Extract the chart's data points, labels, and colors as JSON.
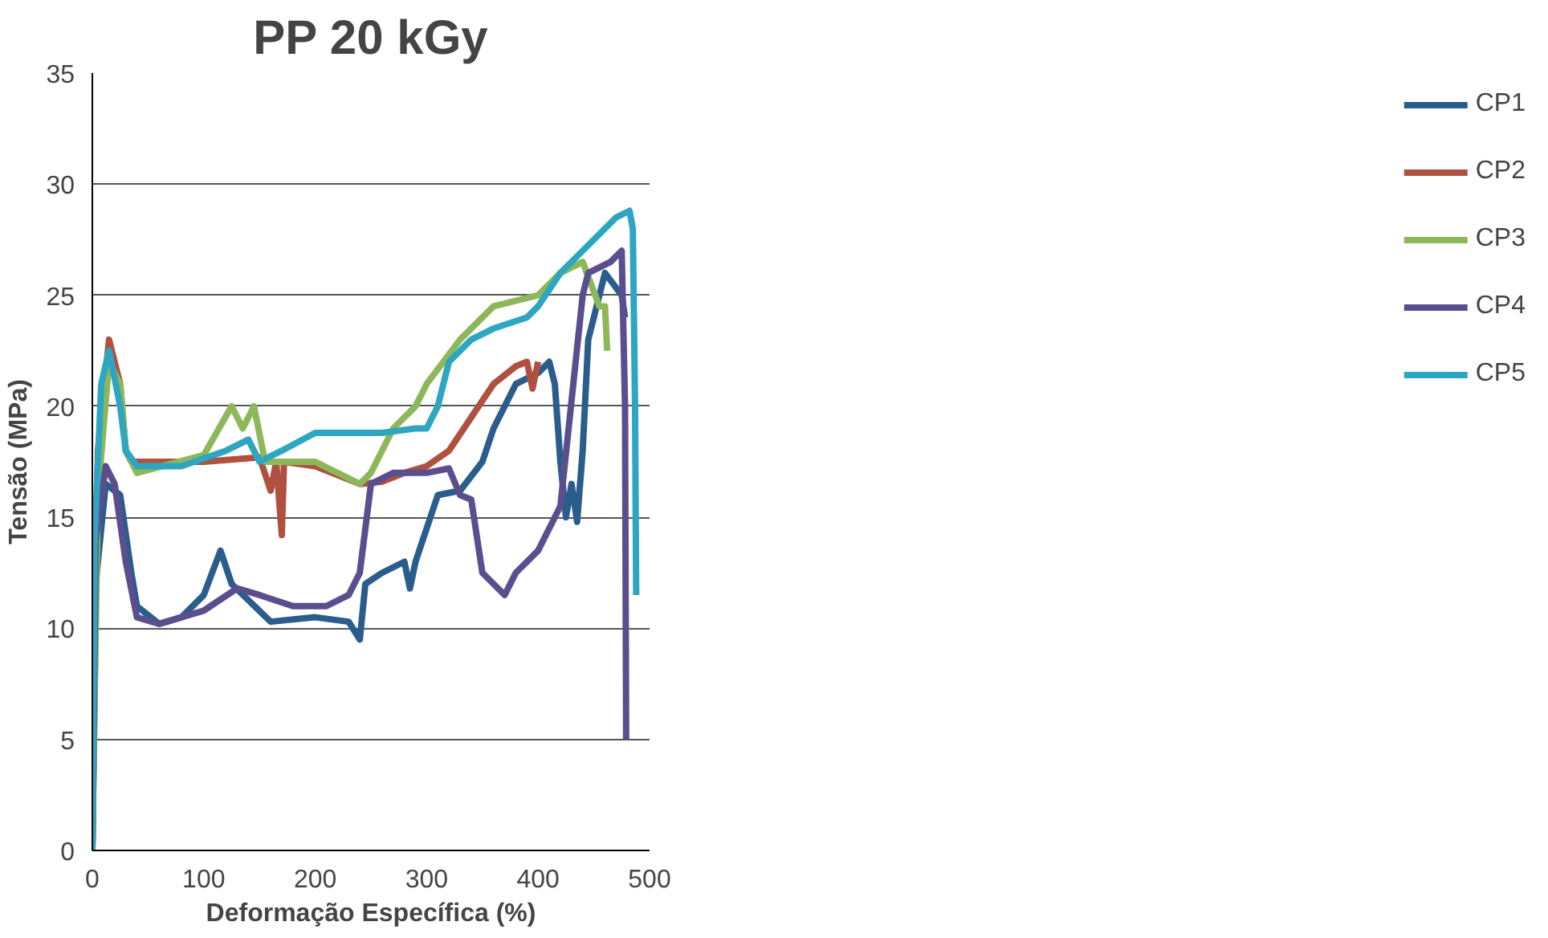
{
  "chart_data": {
    "type": "line",
    "title": "PP 20 kGy",
    "xlabel": "Deformação Específica (%)",
    "ylabel": "Tensão (MPa)",
    "xlim": [
      0,
      500
    ],
    "xticks": [
      0,
      100,
      200,
      300,
      400,
      500
    ],
    "ylim": [
      0,
      35
    ],
    "yticks": [
      0,
      5,
      10,
      15,
      20,
      25,
      30,
      35
    ],
    "grid": "y",
    "legend": "right",
    "marker": "none",
    "line_style": "solid",
    "series": [
      {
        "name": "CP1",
        "color": "#2a5d8c",
        "x": [
          0,
          3,
          12,
          25,
          35,
          40,
          60,
          80,
          100,
          115,
          125,
          160,
          200,
          230,
          240,
          245,
          260,
          280,
          285,
          290,
          310,
          330,
          350,
          360,
          380,
          400,
          410,
          415,
          420,
          425,
          430,
          435,
          440,
          445,
          460,
          475,
          478
        ],
        "values": [
          0,
          12,
          16.5,
          16,
          12.5,
          11,
          10.2,
          10.5,
          11.5,
          13.5,
          12,
          10.3,
          10.5,
          10.3,
          9.5,
          12,
          12.5,
          13,
          11.8,
          13,
          16,
          16.2,
          17.5,
          19,
          21,
          21.5,
          22,
          21,
          17.5,
          15,
          16.5,
          14.8,
          18,
          23,
          26,
          25,
          24
        ]
      },
      {
        "name": "CP2",
        "color": "#b0503f",
        "x": [
          0,
          5,
          15,
          25,
          30,
          35,
          100,
          150,
          160,
          165,
          170,
          172,
          200,
          240,
          260,
          280,
          300,
          320,
          340,
          360,
          380,
          390,
          395,
          400
        ],
        "values": [
          0,
          18,
          23,
          21,
          18,
          17.5,
          17.5,
          17.7,
          16.2,
          17.5,
          14.2,
          17.5,
          17.3,
          16.5,
          16.6,
          17,
          17.3,
          18,
          19.5,
          21,
          21.8,
          22,
          20.8,
          22
        ]
      },
      {
        "name": "CP3",
        "color": "#8db85a",
        "x": [
          0,
          5,
          15,
          25,
          30,
          40,
          100,
          125,
          135,
          145,
          155,
          200,
          240,
          250,
          270,
          290,
          300,
          330,
          360,
          400,
          420,
          440,
          455,
          460,
          462
        ],
        "values": [
          0,
          16,
          22,
          21,
          18,
          17,
          17.8,
          20,
          19,
          20,
          17.5,
          17.5,
          16.5,
          17,
          19,
          20,
          21,
          23,
          24.5,
          25,
          26,
          26.5,
          24.5,
          24.5,
          22.5
        ]
      },
      {
        "name": "CP4",
        "color": "#5b4e8f",
        "x": [
          0,
          3,
          12,
          20,
          30,
          40,
          60,
          80,
          100,
          130,
          150,
          180,
          210,
          230,
          240,
          250,
          270,
          300,
          320,
          330,
          340,
          350,
          370,
          380,
          400,
          420,
          440,
          445,
          465,
          475,
          478,
          479
        ],
        "values": [
          0,
          14,
          17.3,
          16.5,
          13,
          10.5,
          10.2,
          10.5,
          10.8,
          11.8,
          11.5,
          11,
          11,
          11.5,
          12.5,
          16.5,
          17,
          17,
          17.2,
          16,
          15.8,
          12.5,
          11.5,
          12.5,
          13.5,
          15.5,
          25,
          26,
          26.5,
          27,
          20,
          5
        ]
      },
      {
        "name": "CP5",
        "color": "#2ea6c2",
        "x": [
          0,
          2,
          8,
          15,
          25,
          30,
          40,
          80,
          120,
          140,
          150,
          170,
          200,
          240,
          260,
          290,
          300,
          310,
          320,
          340,
          360,
          390,
          400,
          420,
          440,
          470,
          482,
          485,
          487,
          488
        ],
        "values": [
          0,
          14,
          21,
          22.5,
          20,
          18,
          17.3,
          17.3,
          18,
          18.5,
          17.5,
          18,
          18.8,
          18.8,
          18.8,
          19,
          19,
          20,
          22,
          23,
          23.5,
          24,
          24.5,
          26,
          27,
          28.5,
          28.8,
          28,
          20,
          11.5
        ]
      }
    ]
  }
}
